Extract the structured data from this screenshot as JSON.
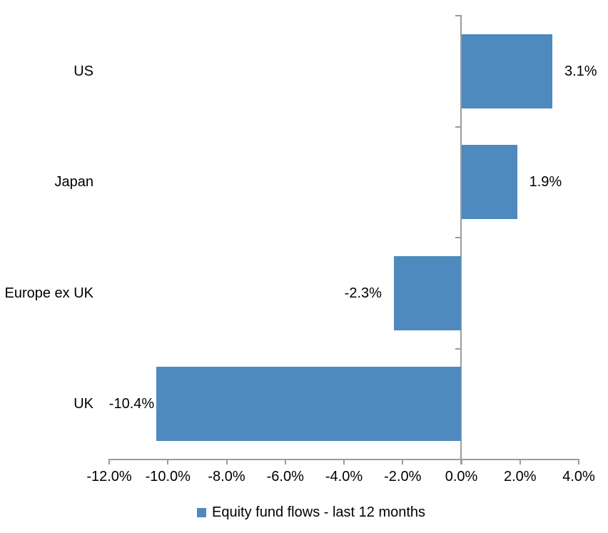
{
  "chart_data": {
    "type": "bar",
    "orientation": "horizontal",
    "title": "",
    "categories": [
      "US",
      "Japan",
      "Europe ex UK",
      "UK"
    ],
    "values": [
      3.1,
      1.9,
      -2.3,
      -10.4
    ],
    "value_labels": [
      "3.1%",
      "1.9%",
      "-2.3%",
      "-10.4%"
    ],
    "x_ticks": [
      -12,
      -10,
      -8,
      -6,
      -4,
      -2,
      0,
      2,
      4
    ],
    "x_tick_labels": [
      "-12.0%",
      "-10.0%",
      "-8.0%",
      "-6.0%",
      "-4.0%",
      "-2.0%",
      "0.0%",
      "2.0%",
      "4.0%"
    ],
    "xlim": [
      -12,
      4
    ],
    "grid": false,
    "legend": "Equity fund flows - last 12 months",
    "legend_position": "bottom-center",
    "bar_color": "#4E8ABD",
    "axis_color": "#9C9C9C",
    "text_color": "#000000"
  }
}
